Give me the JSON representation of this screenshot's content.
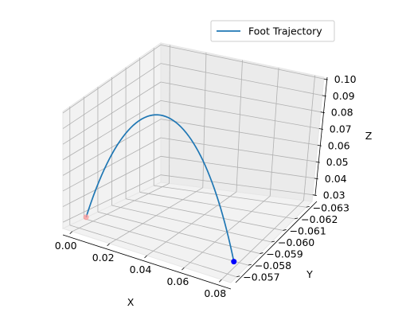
{
  "chart_data": {
    "type": "line",
    "subtype": "3d",
    "title": "",
    "xlabel": "X",
    "ylabel": "Y",
    "zlabel": "Z",
    "xlim": [
      -0.005,
      0.085
    ],
    "ylim": [
      -0.0635,
      -0.0565
    ],
    "zlim": [
      0.026,
      0.101
    ],
    "xticks": [
      "0.00",
      "0.02",
      "0.04",
      "0.06",
      "0.08"
    ],
    "yticks": [
      "−0.063",
      "−0.062",
      "−0.061",
      "−0.060",
      "−0.059",
      "−0.058",
      "−0.057"
    ],
    "zticks": [
      "0.03",
      "0.04",
      "0.05",
      "0.06",
      "0.07",
      "0.08",
      "0.09",
      "0.10"
    ],
    "grid": true,
    "legend": {
      "position": "top-right",
      "entries": [
        "Foot Trajectory"
      ]
    },
    "series": [
      {
        "name": "Foot Trajectory",
        "color": "#1f77b4",
        "start": {
          "x": 0.0,
          "y": -0.0575,
          "z": 0.03
        },
        "end": {
          "x": 0.08,
          "y": -0.0575,
          "z": 0.03
        },
        "peak_z": 0.1
      }
    ],
    "markers": [
      {
        "label": "start",
        "color": "#ff9999"
      },
      {
        "label": "end",
        "color": "#0000ff"
      }
    ]
  }
}
